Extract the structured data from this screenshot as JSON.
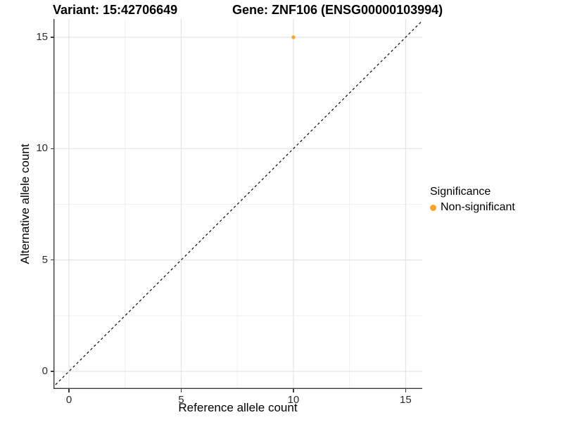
{
  "chart_data": {
    "type": "scatter",
    "title_left": "Variant: 15:42706649",
    "title_right": "Gene: ZNF106 (ENSG00000103994)",
    "xlabel": "Reference allele count",
    "ylabel": "Alternative allele count",
    "xticks": [
      0,
      5,
      10,
      15
    ],
    "yticks": [
      0,
      5,
      10,
      15
    ],
    "minor_xticks": [
      2.5,
      7.5,
      12.5
    ],
    "minor_yticks": [
      2.5,
      7.5,
      12.5
    ],
    "xlim": [
      -0.69,
      15.74
    ],
    "ylim": [
      -0.79,
      15.82
    ],
    "grid": "major and minor, light gray on white panel",
    "identity_line": {
      "type": "abline",
      "slope": 1,
      "intercept": 0,
      "style": "dashed",
      "color": "#000000"
    },
    "points": [
      {
        "x": 10,
        "y": 15,
        "series": "Non-significant",
        "color": "#FFA320"
      }
    ],
    "legend": {
      "position": "right",
      "title": "Significance",
      "items": [
        {
          "label": "Non-significant",
          "color": "#FFA320",
          "marker": "circle"
        }
      ]
    },
    "colors": {
      "grid_major": "#e3e3e3",
      "grid_minor": "#eeeeee",
      "axis_line": "#3c3c3c",
      "point": "#FFA320"
    }
  }
}
